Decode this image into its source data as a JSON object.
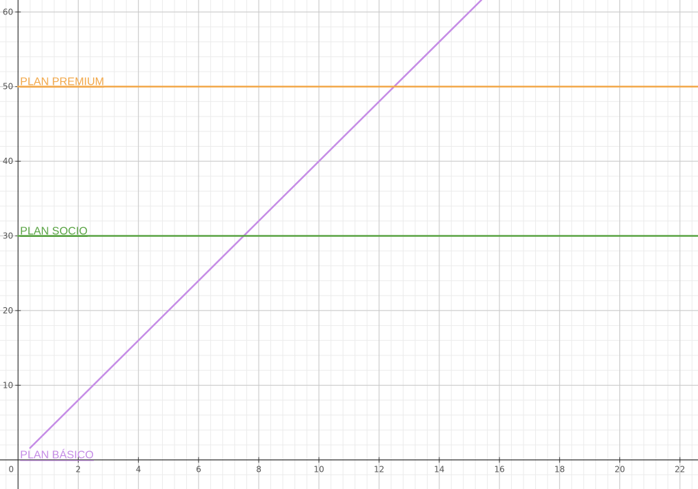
{
  "chart_data": {
    "type": "line",
    "xlim": [
      -0.6,
      22.6
    ],
    "ylim": [
      -3.9,
      61.6
    ],
    "x_ticks": [
      0,
      2,
      4,
      6,
      8,
      10,
      12,
      14,
      16,
      18,
      20,
      22
    ],
    "y_ticks": [
      10,
      20,
      30,
      40,
      50,
      60
    ],
    "x_tick_labels": [
      "0",
      "2",
      "4",
      "6",
      "8",
      "10",
      "12",
      "14",
      "16",
      "18",
      "20",
      "22"
    ],
    "y_tick_labels": [
      "10",
      "20",
      "30",
      "40",
      "50",
      "60"
    ],
    "grid": true,
    "minor_grid_step": {
      "x": 0.4,
      "y": 2
    },
    "legend": "none",
    "series": [
      {
        "name": "PLAN BÁSICO",
        "kind": "linear",
        "x": [
          0.4,
          15.4
        ],
        "y": [
          1.6,
          61.6
        ],
        "color": "#c58ce6",
        "label_at": [
          0,
          0
        ]
      },
      {
        "name": "PLAN SOCIO",
        "kind": "horizontal",
        "x": [
          0,
          22.6
        ],
        "y": [
          30,
          30
        ],
        "color": "#5aa444",
        "label_at": [
          0,
          30
        ]
      },
      {
        "name": "PLAN PREMIUM",
        "kind": "horizontal",
        "x": [
          0,
          22.6
        ],
        "y": [
          50,
          50
        ],
        "color": "#f2a84a",
        "label_at": [
          0,
          50
        ]
      }
    ],
    "title": "",
    "xlabel": "",
    "ylabel": ""
  }
}
